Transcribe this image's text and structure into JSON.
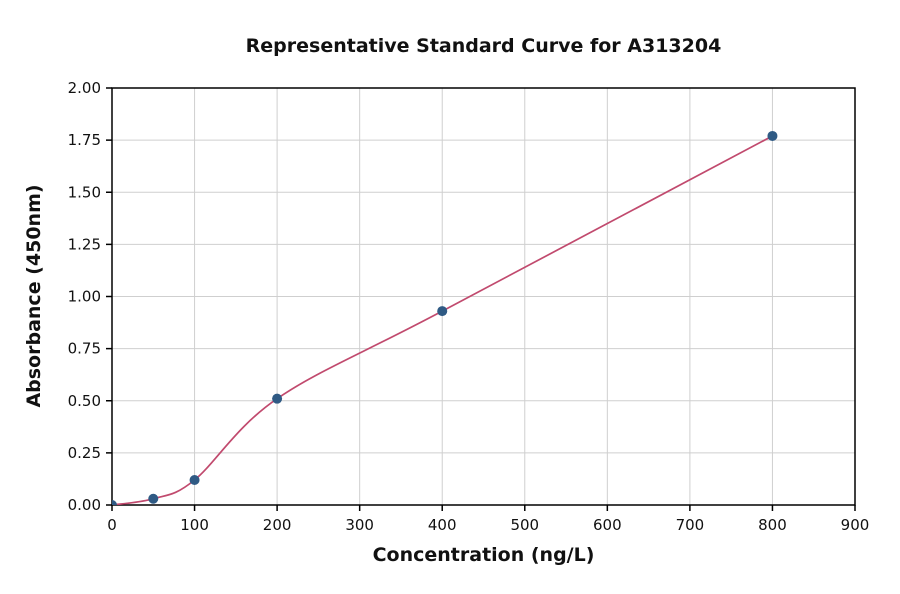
{
  "chart_data": {
    "type": "scatter",
    "title": "Representative Standard Curve for A313204",
    "xlabel": "Concentration (ng/L)",
    "ylabel": "Absorbance (450nm)",
    "xlim": [
      0,
      900
    ],
    "ylim": [
      0,
      2.0
    ],
    "grid": true,
    "legend": "none",
    "x_ticks": [
      0,
      100,
      200,
      300,
      400,
      500,
      600,
      700,
      800,
      900
    ],
    "x_tick_labels": [
      "0",
      "100",
      "200",
      "300",
      "400",
      "500",
      "600",
      "700",
      "800",
      "900"
    ],
    "y_ticks": [
      0,
      0.25,
      0.5,
      0.75,
      1.0,
      1.25,
      1.5,
      1.75,
      2.0
    ],
    "y_tick_labels": [
      "0.00",
      "0.25",
      "0.50",
      "0.75",
      "1.00",
      "1.25",
      "1.50",
      "1.75",
      "2.00"
    ],
    "points": {
      "x": [
        0,
        50,
        100,
        200,
        400,
        800
      ],
      "y": [
        0.0,
        0.03,
        0.12,
        0.51,
        0.93,
        1.77
      ]
    },
    "fit_curve_through_points": true,
    "colors": {
      "point": "#2f5a84",
      "curve": "#c14a6e",
      "grid": "#cfcfcf",
      "axis": "#000000",
      "text": "#111111",
      "background": "#ffffff"
    }
  }
}
